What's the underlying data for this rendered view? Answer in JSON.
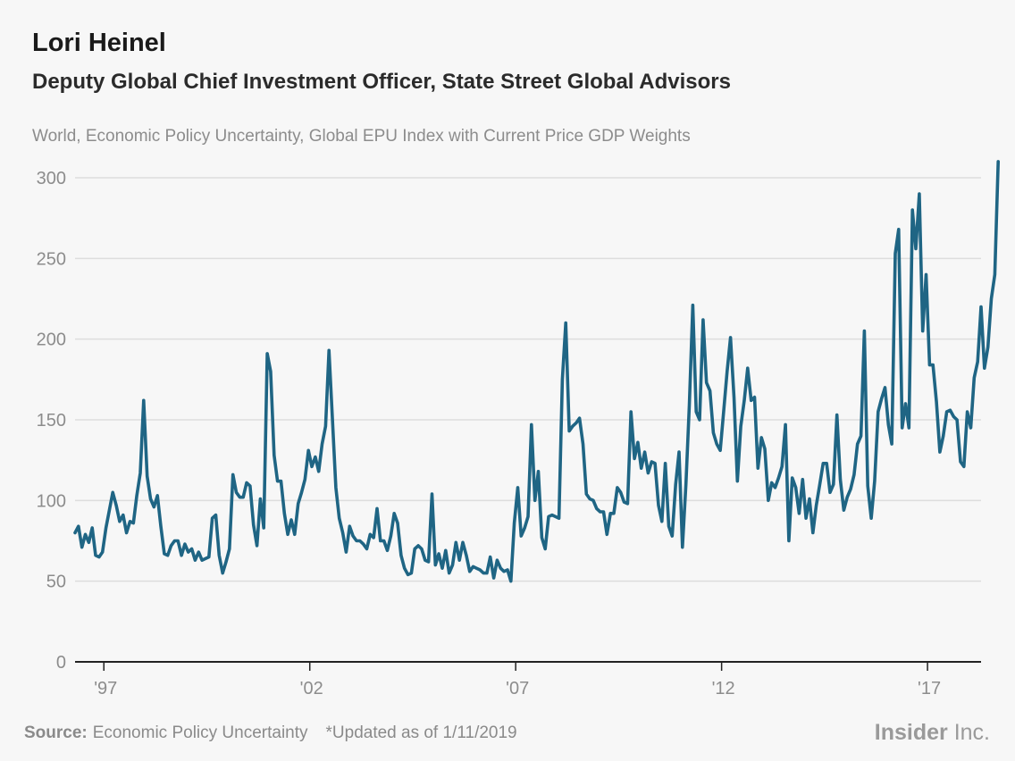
{
  "header": {
    "title": "Lori Heinel",
    "subtitle": "Deputy Global Chief Investment Officer, State Street Global Advisors"
  },
  "footer": {
    "source_label": "Source:",
    "source_text": "Economic Policy Uncertainty",
    "note": "*Updated as of 1/11/2019",
    "brand_bold": "Insider",
    "brand_light": "Inc."
  },
  "colors": {
    "line": "#1f6584",
    "grid": "#dddddd",
    "axis": "#222222",
    "tick_text": "#8c8c8c"
  },
  "chart_data": {
    "type": "line",
    "title": "World, Economic Policy Uncertainty, Global EPU Index with Current Price GDP Weights",
    "xlabel": "",
    "ylabel": "",
    "ylim": [
      0,
      300
    ],
    "yticks": [
      0,
      50,
      100,
      150,
      200,
      250,
      300
    ],
    "xlim": [
      1997.0,
      2019.0
    ],
    "xticks": [
      {
        "label": "'97",
        "value": 1997.7
      },
      {
        "label": "'02",
        "value": 2002.7
      },
      {
        "label": "'07",
        "value": 2007.7
      },
      {
        "label": "'12",
        "value": 2012.7
      },
      {
        "label": "'17",
        "value": 2017.7
      }
    ],
    "grid": true,
    "series": [
      {
        "name": "Global EPU Index",
        "x_start": 1997.0,
        "step": 0.0833333,
        "values": [
          80,
          84,
          71,
          79,
          74,
          83,
          66,
          65,
          68,
          83,
          94,
          105,
          97,
          87,
          91,
          80,
          87,
          86,
          103,
          117,
          162,
          115,
          101,
          96,
          103,
          84,
          67,
          66,
          72,
          75,
          75,
          66,
          73,
          68,
          70,
          63,
          68,
          63,
          64,
          65,
          89,
          91,
          66,
          55,
          62,
          70,
          116,
          105,
          102,
          102,
          111,
          109,
          85,
          72,
          101,
          83,
          191,
          180,
          128,
          112,
          112,
          92,
          79,
          88,
          79,
          98,
          105,
          113,
          131,
          121,
          127,
          118,
          135,
          146,
          193,
          150,
          108,
          89,
          80,
          68,
          84,
          78,
          75,
          75,
          73,
          70,
          79,
          77,
          95,
          75,
          75,
          69,
          78,
          92,
          86,
          66,
          58,
          54,
          55,
          70,
          72,
          70,
          63,
          62,
          104,
          60,
          67,
          58,
          69,
          55,
          60,
          74,
          63,
          74,
          66,
          56,
          59,
          58,
          57,
          55,
          55,
          65,
          52,
          63,
          58,
          56,
          57,
          50,
          86,
          108,
          78,
          83,
          90,
          147,
          100,
          118,
          77,
          70,
          90,
          91,
          90,
          89,
          175,
          210,
          143,
          146,
          148,
          151,
          135,
          104,
          101,
          100,
          95,
          93,
          93,
          79,
          92,
          92,
          108,
          105,
          99,
          98,
          155,
          126,
          136,
          120,
          130,
          117,
          124,
          123,
          97,
          87,
          123,
          84,
          78,
          110,
          130,
          71,
          110,
          159,
          221,
          155,
          150,
          212,
          173,
          168,
          142,
          135,
          131,
          155,
          180,
          201,
          164,
          112,
          146,
          162,
          182,
          162,
          164,
          120,
          139,
          132,
          100,
          111,
          108,
          114,
          121,
          147,
          75,
          114,
          108,
          92,
          113,
          89,
          101,
          80,
          97,
          110,
          123,
          123,
          105,
          110,
          153,
          113,
          94,
          102,
          107,
          116,
          135,
          140,
          205,
          109,
          89,
          112,
          155,
          163,
          170,
          147,
          135,
          253,
          268,
          145,
          160,
          145,
          280,
          256,
          290,
          205,
          240,
          184,
          184,
          161,
          130,
          140,
          155,
          156,
          152,
          150,
          124,
          121,
          155,
          145,
          176,
          186,
          220,
          182,
          195,
          225,
          240,
          310
        ]
      }
    ]
  }
}
